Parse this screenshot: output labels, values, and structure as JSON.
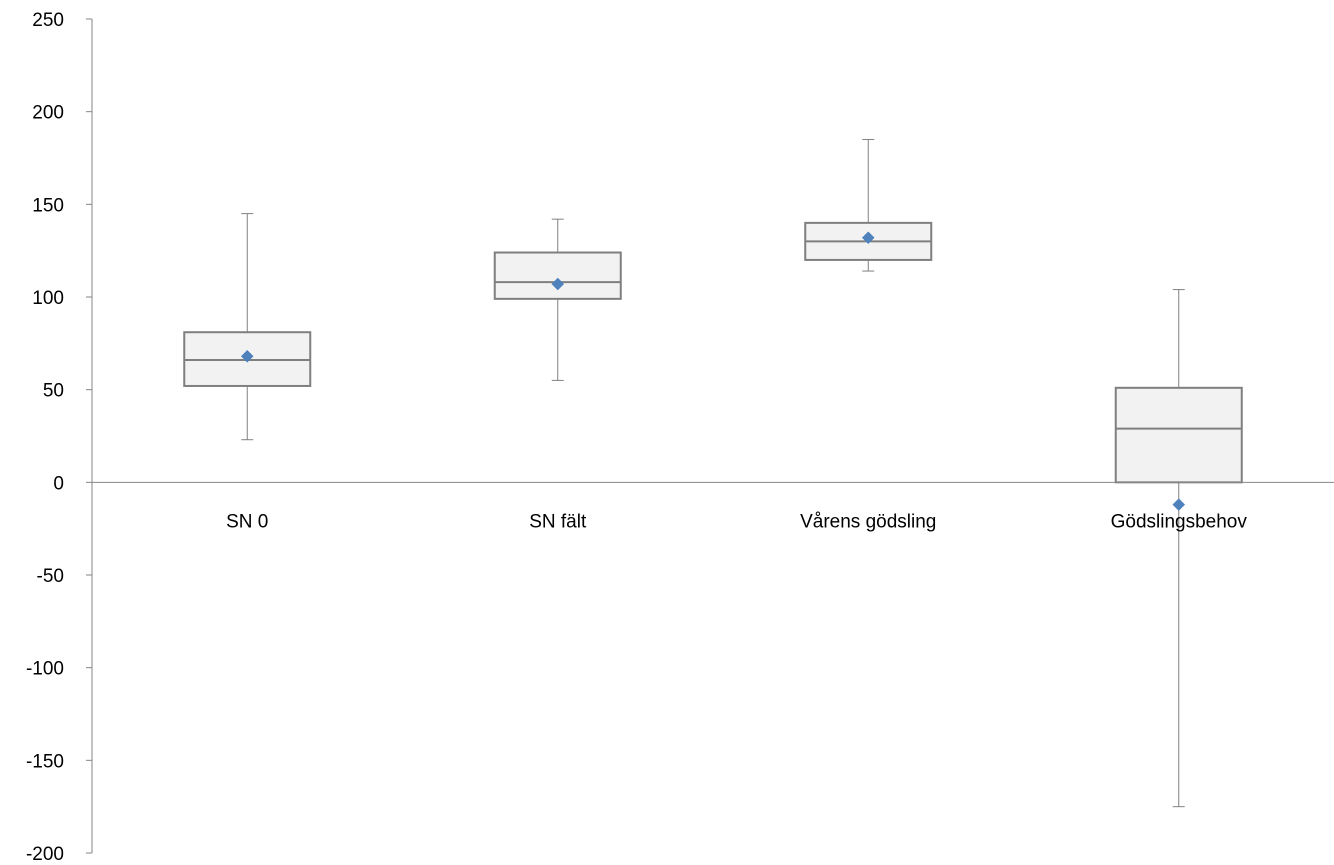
{
  "chart_data": {
    "type": "boxplot",
    "title": "",
    "xlabel": "",
    "ylabel": "",
    "ylim": [
      -200,
      250
    ],
    "y_ticks": [
      250,
      200,
      150,
      100,
      50,
      0,
      -50,
      -100,
      -150,
      -200
    ],
    "y_tick_labels": [
      "250",
      "200",
      "150",
      "100",
      "50",
      "0",
      "-50",
      "-100",
      "-150",
      "-200"
    ],
    "grid": false,
    "legend": "none",
    "categories": [
      "SN 0",
      "SN fält",
      "Vårens gödsling",
      "Gödslingsbehov"
    ],
    "boxes": [
      {
        "min": 23,
        "q1": 52,
        "median": 66,
        "q3": 81,
        "max": 145,
        "mean": 68
      },
      {
        "min": 55,
        "q1": 99,
        "median": 108,
        "q3": 124,
        "max": 142,
        "mean": 107
      },
      {
        "min": 114,
        "q1": 120,
        "median": 130,
        "q3": 140,
        "max": 185,
        "mean": 132
      },
      {
        "min": -175,
        "q1": 0,
        "median": 29,
        "q3": 51,
        "max": 104,
        "mean": -12
      }
    ],
    "colors": {
      "box_fill": "#f2f2f2",
      "box_stroke": "#7f7f7f",
      "whisker": "#808080",
      "mean_marker": "#4f81bd",
      "axis": "#868686"
    }
  }
}
